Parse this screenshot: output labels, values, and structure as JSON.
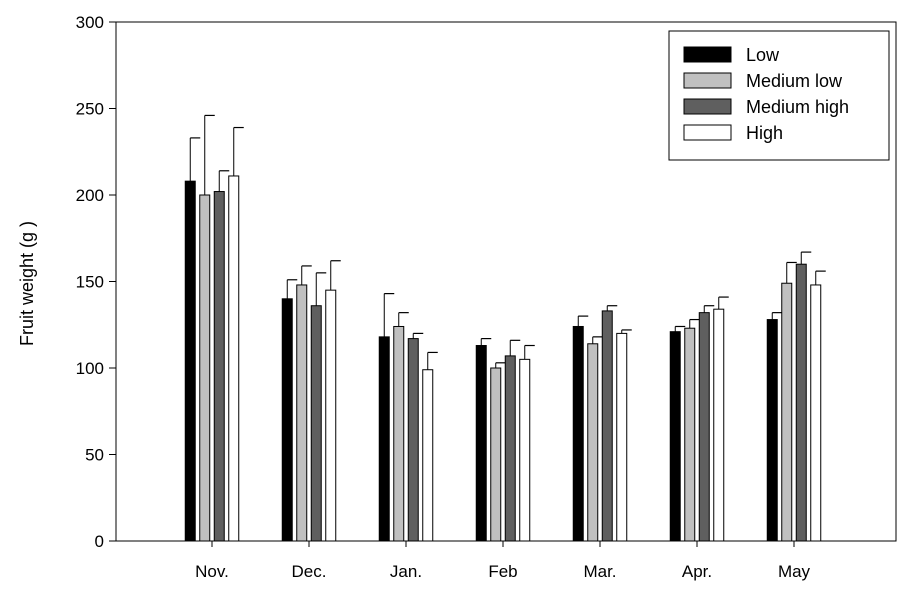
{
  "chart_data": {
    "type": "bar",
    "title": "",
    "xlabel": "",
    "ylabel": "Fruit weight (g )",
    "ylim": [
      0,
      300
    ],
    "yticks": [
      0,
      50,
      100,
      150,
      200,
      250,
      300
    ],
    "categories": [
      "Nov.",
      "Dec.",
      "Jan.",
      "Feb",
      "Mar.",
      "Apr.",
      "May"
    ],
    "grid": false,
    "legend_position": "top-right",
    "series": [
      {
        "name": "Low",
        "color": "#000000",
        "values": [
          208,
          140,
          118,
          113,
          124,
          121,
          128
        ],
        "errors": [
          25,
          11,
          25,
          4,
          6,
          3,
          4
        ]
      },
      {
        "name": "Medium low",
        "color": "#c0c0c0",
        "values": [
          200,
          148,
          124,
          100,
          114,
          123,
          149
        ],
        "errors": [
          46,
          11,
          8,
          3,
          4,
          5,
          12
        ]
      },
      {
        "name": "Medium high",
        "color": "#5f5f5f",
        "values": [
          202,
          136,
          117,
          107,
          133,
          132,
          160
        ],
        "errors": [
          12,
          19,
          3,
          9,
          3,
          4,
          7
        ]
      },
      {
        "name": "High",
        "color": "#ffffff",
        "values": [
          211,
          145,
          99,
          105,
          120,
          134,
          148
        ],
        "errors": [
          28,
          17,
          10,
          8,
          2,
          7,
          8
        ]
      }
    ]
  }
}
